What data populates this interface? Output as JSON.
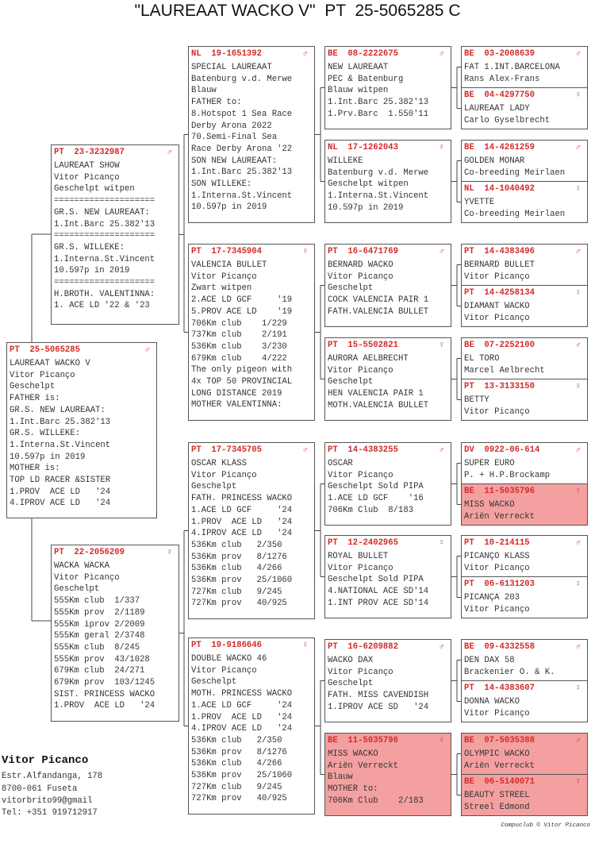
{
  "title": "\"LAUREAAT WACKO V\"  PT  25-5065285 C",
  "highlight_color": "#f4a0a0",
  "ring_color": "#d42a2a",
  "pigeons": [
    {
      "country": "PT",
      "ring": "25-5065285",
      "sex": "male",
      "lines": [
        "LAUREAAT WACKO V",
        "Vitor Picanço",
        "Geschelpt",
        "FATHER is:",
        "GR.S. NEW LAUREAAT:",
        "1.Int.Barc 25.382'13",
        "GR.S. WILLEKE:",
        "1.Interna.St.Vincent",
        "10.597p in 2019",
        "MOTHER is:",
        "TOP LD RACER &SISTER",
        "1.PROV  ACE LD   '24",
        "4.IPROV ACE LD   '24"
      ]
    },
    {
      "country": "PT",
      "ring": "23-3232987",
      "sex": "male",
      "lines": [
        "LAUREAAT SHOW",
        "Vitor Picanço",
        "Geschelpt witpen",
        "====================",
        "GR.S. NEW LAUREAAT:",
        "1.Int.Barc 25.382'13",
        "====================",
        "GR.S. WILLEKE:",
        "1.Interna.St.Vincent",
        "10.597p in 2019",
        "====================",
        "H.BROTH. VALENTINNA:",
        "1. ACE LD '22 & '23"
      ]
    },
    {
      "country": "PT",
      "ring": "22-2056209",
      "sex": "female",
      "lines": [
        "WACKA WACKA",
        "Vitor Picanço",
        "Geschelpt",
        "555Km club  1/337",
        "555Km prov  2/1189",
        "555Km iprov 2/2009",
        "555Km geral 2/3748",
        "555Km club  8/245",
        "555Km prov  43/1028",
        "679Km club  24/271",
        "679Km prov  103/1245",
        "SIST. PRINCESS WACKO",
        "1.PROV  ACE LD   '24"
      ]
    },
    {
      "country": "NL",
      "ring": "19-1651392",
      "sex": "male",
      "lines": [
        "SPECIAL LAUREAAT",
        "Batenburg v.d. Merwe",
        "Blauw",
        "FATHER to:",
        "8.Hotspot 1 Sea Race",
        "Derby Arona 2022",
        "70.Semi-Final Sea",
        "Race Derby Arona '22",
        "SON NEW LAUREAAT:",
        "1.Int.Barc 25.382'13",
        "SON WILLEKE:",
        "1.Interna.St.Vincent",
        "10.597p in 2019"
      ]
    },
    {
      "country": "PT",
      "ring": "17-7345904",
      "sex": "female",
      "lines": [
        "VALENCIA BULLET",
        "Vitor Picanço",
        "Zwart witpen",
        "2.ACE LD GCF     '19",
        "5.PROV ACE LD    '19",
        "706Km club    1/229",
        "737Km club    2/191",
        "536Km club    3/230",
        "679Km club    4/222",
        "The only pigeon with",
        "4x TOP 50 PROVINCIAL",
        "LONG DISTANCE 2019",
        "MOTHER VALENTINNA:"
      ]
    },
    {
      "country": "PT",
      "ring": "17-7345705",
      "sex": "male",
      "lines": [
        "OSCAR KLASS",
        "Vitor Picanço",
        "Geschelpt",
        "FATH. PRINCESS WACKO",
        "1.ACE LD GCF     '24",
        "1.PROV  ACE LD   '24",
        "4.IPROV ACE LD   '24",
        "536Km club   2/350",
        "536Km prov   8/1276",
        "536Km club   4/266",
        "536Km prov   25/1060",
        "727Km club   9/245",
        "727Km prov   40/925"
      ]
    },
    {
      "country": "PT",
      "ring": "19-9186646",
      "sex": "female",
      "lines": [
        "DOUBLE WACKO 46",
        "Vitor Picanço",
        "Geschelpt",
        "MOTH. PRINCESS WACKO",
        "1.ACE LD GCF     '24",
        "1.PROV  ACE LD   '24",
        "4.IPROV ACE LD   '24",
        "536Km club   2/350",
        "536Km prov   8/1276",
        "536Km club   4/266",
        "536Km prov   25/1060",
        "727Km club   9/245",
        "727Km prov   40/925"
      ]
    },
    {
      "country": "BE",
      "ring": "08-2222675",
      "sex": "male",
      "lines": [
        "NEW LAUREAAT",
        "PEC & Batenburg",
        "Blauw witpen",
        "1.Int.Barc 25.382'13",
        "1.Prv.Barc  1.550'11"
      ]
    },
    {
      "country": "NL",
      "ring": "17-1262043",
      "sex": "female",
      "lines": [
        "WILLEKE",
        "Batenburg v.d. Merwe",
        "Geschelpt witpen",
        "1.Interna.St.Vincent",
        "10.597p in 2019"
      ]
    },
    {
      "country": "PT",
      "ring": "16-6471769",
      "sex": "male",
      "lines": [
        "BERNARD WACKO",
        "Vitor Picanço",
        "Geschelpt",
        "COCK VALENCIA PAIR 1",
        "FATH.VALENCIA BULLET"
      ]
    },
    {
      "country": "PT",
      "ring": "15-5502821",
      "sex": "female",
      "lines": [
        "AURORA AELBRECHT",
        "Vitor Picanço",
        "Geschelpt",
        "HEN VALENCIA PAIR 1",
        "MOTH.VALENCIA BULLET"
      ]
    },
    {
      "country": "PT",
      "ring": "14-4383255",
      "sex": "male",
      "lines": [
        "OSCAR",
        "Vitor Picanço",
        "Geschelpt Sold PIPA",
        "1.ACE LD GCF    '16",
        "706Km Club  8/183"
      ]
    },
    {
      "country": "PT",
      "ring": "12-2402965",
      "sex": "female",
      "lines": [
        "ROYAL BULLET",
        "Vitor Picanço",
        "Geschelpt Sold PIPA",
        "4.NATIONAL ACE SD'14",
        "1.INT PROV ACE SD'14"
      ]
    },
    {
      "country": "PT",
      "ring": "16-6209882",
      "sex": "male",
      "lines": [
        "WACKO DAX",
        "Vitor Picanço",
        "Geschelpt",
        "FATH. MISS CAVENDISH",
        "1.IPROV ACE SD   '24"
      ]
    },
    {
      "country": "BE",
      "ring": "11-5035796",
      "sex": "female",
      "highlight": true,
      "lines": [
        "MISS WACKO",
        "Ariën Verreckt",
        "Blauw",
        "MOTHER to:",
        "706Km Club    2/183"
      ]
    },
    {
      "country": "BE",
      "ring": "03-2008639",
      "sex": "male",
      "lines": [
        "FAT 1.INT.BARCELONA",
        "Rans Alex-Frans"
      ]
    },
    {
      "country": "BE",
      "ring": "04-4297750",
      "sex": "female",
      "lines": [
        "LAUREAAT LADY",
        "Carlo Gyselbrecht"
      ]
    },
    {
      "country": "BE",
      "ring": "14-4261259",
      "sex": "male",
      "lines": [
        "GOLDEN MONAR",
        "Co-breeding Meirlaen"
      ]
    },
    {
      "country": "NL",
      "ring": "14-1040492",
      "sex": "female",
      "lines": [
        "YVETTE",
        "Co-breeding Meirlaen"
      ]
    },
    {
      "country": "PT",
      "ring": "14-4383496",
      "sex": "male",
      "lines": [
        "BERNARD BULLET",
        "Vitor Picanço"
      ]
    },
    {
      "country": "PT",
      "ring": "14-4258134",
      "sex": "female",
      "lines": [
        "DIAMANT WACKO",
        "Vitor Picanço"
      ]
    },
    {
      "country": "BE",
      "ring": "07-2252100",
      "sex": "male",
      "lines": [
        "EL TORO",
        "Marcel Aelbrecht"
      ]
    },
    {
      "country": "PT",
      "ring": "13-3133150",
      "sex": "female",
      "lines": [
        "BETTY",
        "Vitor Picanço"
      ]
    },
    {
      "country": "DV",
      "ring": "0922-06-614",
      "sex": "male",
      "lines": [
        "SUPER EURO",
        "P. + H.P.Brockamp"
      ]
    },
    {
      "country": "BE",
      "ring": "11-5035796",
      "sex": "female",
      "highlight": true,
      "lines": [
        "MISS WACKO",
        "Ariën Verreckt"
      ]
    },
    {
      "country": "PT",
      "ring": "10-214115",
      "sex": "male",
      "lines": [
        "PICANÇO KLASS",
        "Vitor Picanço"
      ]
    },
    {
      "country": "PT",
      "ring": "06-6131203",
      "sex": "female",
      "lines": [
        "PICANÇA 203",
        "Vitor Picanço"
      ]
    },
    {
      "country": "BE",
      "ring": "09-4332558",
      "sex": "male",
      "lines": [
        "DEN DAX 58",
        "Brackenier O. & K."
      ]
    },
    {
      "country": "PT",
      "ring": "14-4383607",
      "sex": "female",
      "lines": [
        "DONNA WACKO",
        "Vitor Picanço"
      ]
    },
    {
      "country": "BE",
      "ring": "07-5035388",
      "sex": "male",
      "highlight": true,
      "lines": [
        "OLYMPIC WACKO",
        "Ariën Verreckt"
      ]
    },
    {
      "country": "BE",
      "ring": "06-5140071",
      "sex": "female",
      "highlight": true,
      "lines": [
        "BEAUTY STREEL",
        "Streel Edmond"
      ]
    }
  ],
  "owner": {
    "name": "Vitor Picanco",
    "address": "Estr.Alfandanga, 178",
    "city": "8700-061 Fuseta",
    "email": "vitorbrito99@gmail",
    "phone": "Tel: +351 919712917"
  },
  "credit": "Compuclub © Vitor Picanco"
}
